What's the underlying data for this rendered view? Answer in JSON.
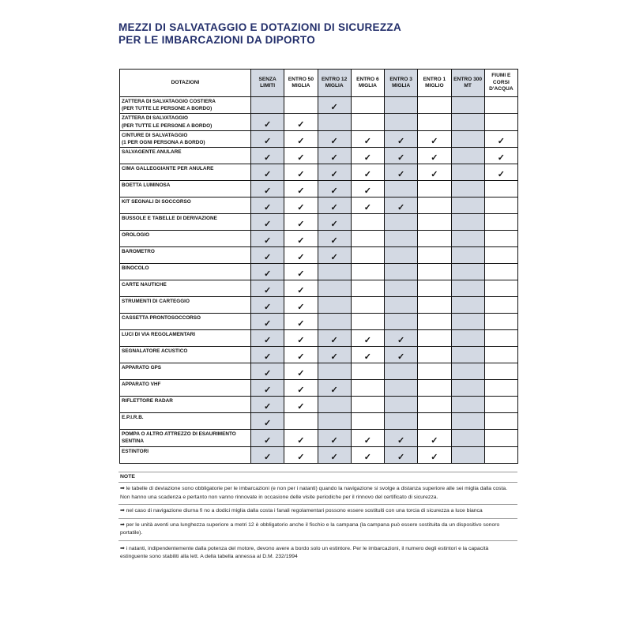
{
  "title": [
    "MEZZI DI SALVATAGGIO E DOTAZIONI DI SICUREZZA",
    "PER LE IMBARCAZIONI DA DIPORTO"
  ],
  "colors": {
    "title": "#232f6b",
    "shaded_column": "#d3d9e3"
  },
  "check_symbol": "✓",
  "table": {
    "header_first": "DOTAZIONI",
    "columns": [
      {
        "label": [
          "SENZA",
          "LIMITI"
        ],
        "shaded": true
      },
      {
        "label": [
          "ENTRO 50",
          "MIGLIA"
        ],
        "shaded": false
      },
      {
        "label": [
          "ENTRO 12",
          "MIGLIA"
        ],
        "shaded": true
      },
      {
        "label": [
          "ENTRO 6",
          "MIGLIA"
        ],
        "shaded": false
      },
      {
        "label": [
          "ENTRO 3",
          "MIGLIA"
        ],
        "shaded": true
      },
      {
        "label": [
          "ENTRO 1",
          "MIGLIO"
        ],
        "shaded": false
      },
      {
        "label": [
          "ENTRO 300",
          "MT"
        ],
        "shaded": true
      },
      {
        "label": [
          "FIUMI E",
          "CORSI",
          "D'ACQUA"
        ],
        "shaded": false
      }
    ],
    "rows": [
      {
        "name": [
          "ZATTERA DI SALVATAGGIO COSTIERA",
          "(PER TUTTE LE PERSONE A BORDO)"
        ],
        "checks": [
          0,
          0,
          1,
          0,
          0,
          0,
          0,
          0
        ]
      },
      {
        "name": [
          "ZATTERA DI SALVATAGGIO",
          "(PER TUTTE LE PERSONE A BORDO)"
        ],
        "checks": [
          1,
          1,
          0,
          0,
          0,
          0,
          0,
          0
        ]
      },
      {
        "name": [
          "CINTURE DI SALVATAGGIO",
          "(1 PER OGNI PERSONA A BORDO)"
        ],
        "checks": [
          1,
          1,
          1,
          1,
          1,
          1,
          0,
          1
        ]
      },
      {
        "name": [
          "SALVAGENTE ANULARE"
        ],
        "checks": [
          1,
          1,
          1,
          1,
          1,
          1,
          0,
          1
        ]
      },
      {
        "name": [
          "CIMA GALLEGGIANTE PER ANULARE"
        ],
        "checks": [
          1,
          1,
          1,
          1,
          1,
          1,
          0,
          1
        ]
      },
      {
        "name": [
          "BOETTA LUMINOSA"
        ],
        "checks": [
          1,
          1,
          1,
          1,
          0,
          0,
          0,
          0
        ]
      },
      {
        "name": [
          "KIT SEGNALI DI SOCCORSO"
        ],
        "checks": [
          1,
          1,
          1,
          1,
          1,
          0,
          0,
          0
        ]
      },
      {
        "name": [
          "BUSSOLE E TABELLE DI DERIVAZIONE"
        ],
        "checks": [
          1,
          1,
          1,
          0,
          0,
          0,
          0,
          0
        ]
      },
      {
        "name": [
          "OROLOGIO"
        ],
        "checks": [
          1,
          1,
          1,
          0,
          0,
          0,
          0,
          0
        ]
      },
      {
        "name": [
          "BAROMETRO"
        ],
        "checks": [
          1,
          1,
          1,
          0,
          0,
          0,
          0,
          0
        ]
      },
      {
        "name": [
          "BINOCOLO"
        ],
        "checks": [
          1,
          1,
          0,
          0,
          0,
          0,
          0,
          0
        ]
      },
      {
        "name": [
          "CARTE NAUTICHE"
        ],
        "checks": [
          1,
          1,
          0,
          0,
          0,
          0,
          0,
          0
        ]
      },
      {
        "name": [
          "STRUMENTI DI CARTEGGIO"
        ],
        "checks": [
          1,
          1,
          0,
          0,
          0,
          0,
          0,
          0
        ]
      },
      {
        "name": [
          "CASSETTA PRONTOSOCCORSO"
        ],
        "checks": [
          1,
          1,
          0,
          0,
          0,
          0,
          0,
          0
        ]
      },
      {
        "name": [
          "LUCI DI VIA REGOLAMENTARI"
        ],
        "checks": [
          1,
          1,
          1,
          1,
          1,
          0,
          0,
          0
        ]
      },
      {
        "name": [
          "SEGNALATORE ACUSTICO"
        ],
        "checks": [
          1,
          1,
          1,
          1,
          1,
          0,
          0,
          0
        ]
      },
      {
        "name": [
          "APPARATO GPS"
        ],
        "checks": [
          1,
          1,
          0,
          0,
          0,
          0,
          0,
          0
        ]
      },
      {
        "name": [
          "APPARATO VHF"
        ],
        "checks": [
          1,
          1,
          1,
          0,
          0,
          0,
          0,
          0
        ]
      },
      {
        "name": [
          "RIFLETTORE RADAR"
        ],
        "checks": [
          1,
          1,
          0,
          0,
          0,
          0,
          0,
          0
        ]
      },
      {
        "name": [
          "E.P.I.R.B."
        ],
        "checks": [
          1,
          0,
          0,
          0,
          0,
          0,
          0,
          0
        ]
      },
      {
        "name": [
          "POMPA O ALTRO ATTREZZO DI ESAURIMENTO",
          "SENTINA"
        ],
        "checks": [
          1,
          1,
          1,
          1,
          1,
          1,
          0,
          0
        ]
      },
      {
        "name": [
          "ESTINTORI"
        ],
        "checks": [
          1,
          1,
          1,
          1,
          1,
          1,
          0,
          0
        ]
      }
    ]
  },
  "notes": {
    "heading": "NOTE",
    "bullet": "➡",
    "items": [
      "le tabelle di deviazione sono obbligatorie per le imbarcazioni (e non per i natanti) quando la navigazione si svolge a  distanza superiore alle sei miglia dalla costa. Non hanno una scadenza e pertanto non vanno rinnovate in occasione delle visite periodiche per il rinnovo del certificato di sicurezza.",
      "nel caso di navigazione diurna fi no a dodici miglia dalla costa i fanali regolamentari possono essere sostituiti con una torcia di sicurezza a luce bianca",
      "per le unità aventi una lunghezza superiore a metri 12 è obbligatorio anche il fischio e la campana (la campana può essere sostituita da un dispositivo sonoro portatile).",
      "i natanti, indipendentemente dalla potenza del motore, devono avere a bordo solo un estintore. Per le imbarcazioni, il numero degli estintori e la capacità estinguente sono stabiliti alla lett. A della tabella annessa al D.M. 232/1994"
    ]
  }
}
